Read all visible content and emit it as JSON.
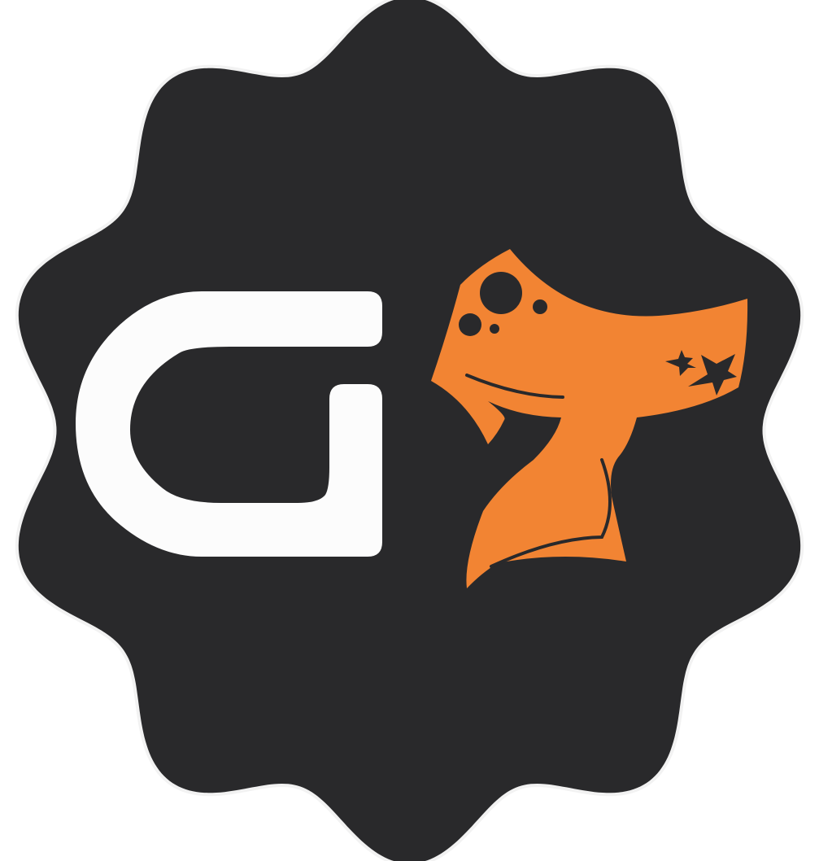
{
  "logo": {
    "badge_color": "#29292b",
    "badge_edge_color": "#f2f2f2",
    "letter_color": "#fcfcfc",
    "mark_color": "#f28433",
    "icon": "scalloped-seal-g-seven-logo-icon"
  }
}
